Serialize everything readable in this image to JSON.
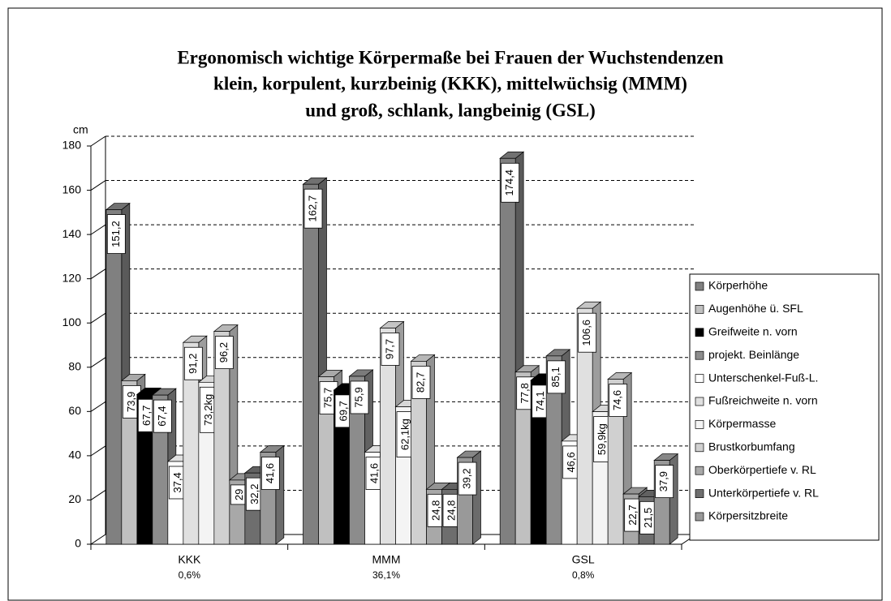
{
  "chart_data": {
    "type": "bar3d",
    "title": [
      "Ergonomisch wichtige Körpermaße bei Frauen der Wuchstendenzen",
      "klein, korpulent, kurzbeinig (KKK), mittelwüchsig (MMM)",
      "und groß, schlank, langbeinig (GSL)"
    ],
    "y_label": "cm",
    "categories": [
      "KKK",
      "MMM",
      "GSL"
    ],
    "category_notes": [
      "0,6%",
      "36,1%",
      "0,8%"
    ],
    "ylim": [
      0,
      180
    ],
    "yticks": [
      0,
      20,
      40,
      60,
      80,
      100,
      120,
      140,
      160,
      180
    ],
    "grid": true,
    "legend": "right",
    "series": [
      {
        "name": "Körperhöhe",
        "color": "#808080",
        "values": [
          151.2,
          162.7,
          174.4
        ],
        "value_labels": [
          "151,2",
          "162,7",
          "174,4"
        ]
      },
      {
        "name": "Augenhöhe ü. SFL",
        "color": "#c0c0c0",
        "values": [
          73.9,
          75.7,
          77.8
        ],
        "value_labels": [
          "73,9",
          "75,7",
          "77,8"
        ]
      },
      {
        "name": "Greifweite n. vorn",
        "color": "#000000",
        "values": [
          67.7,
          69.7,
          74.1
        ],
        "value_labels": [
          "67,7",
          "69,7",
          "74,1"
        ]
      },
      {
        "name": "projekt. Beinlänge",
        "color": "#8c8c8c",
        "values": [
          67.4,
          75.9,
          85.1
        ],
        "value_labels": [
          "67,4",
          "75,9",
          "85,1"
        ]
      },
      {
        "name": "Unterschenkel-Fuß-L.",
        "color": "#ffffff",
        "values": [
          37.4,
          41.6,
          46.6
        ],
        "value_labels": [
          "37,4",
          "41,6",
          "46,6"
        ]
      },
      {
        "name": "Fußreichweite n. vorn",
        "color": "#e0e0e0",
        "values": [
          91.2,
          97.7,
          106.6
        ],
        "value_labels": [
          "91,2",
          "97,7",
          "106,6"
        ]
      },
      {
        "name": "Körpermasse",
        "color": "#f4f4f4",
        "values": [
          73.2,
          62.1,
          59.9
        ],
        "value_labels": [
          "73,2kg",
          "62,1kg",
          "59,9kg"
        ]
      },
      {
        "name": "Brustkorbumfang",
        "color": "#d0d0d0",
        "values": [
          96.2,
          82.7,
          74.6
        ],
        "value_labels": [
          "96,2",
          "82,7",
          "74,6"
        ]
      },
      {
        "name": "Oberkörpertiefe v. RL",
        "color": "#a8a8a8",
        "values": [
          29,
          24.8,
          22.7
        ],
        "value_labels": [
          "29",
          "24,8",
          "22,7"
        ]
      },
      {
        "name": "Unterkörpertiefe v. RL",
        "color": "#6e6e6e",
        "values": [
          32.2,
          24.8,
          21.5
        ],
        "value_labels": [
          "32,2",
          "24,8",
          "21,5"
        ]
      },
      {
        "name": "Körpersitzbreite",
        "color": "#999999",
        "values": [
          41.6,
          39.2,
          37.9
        ],
        "value_labels": [
          "41,6",
          "39,2",
          "37,9"
        ]
      }
    ]
  }
}
